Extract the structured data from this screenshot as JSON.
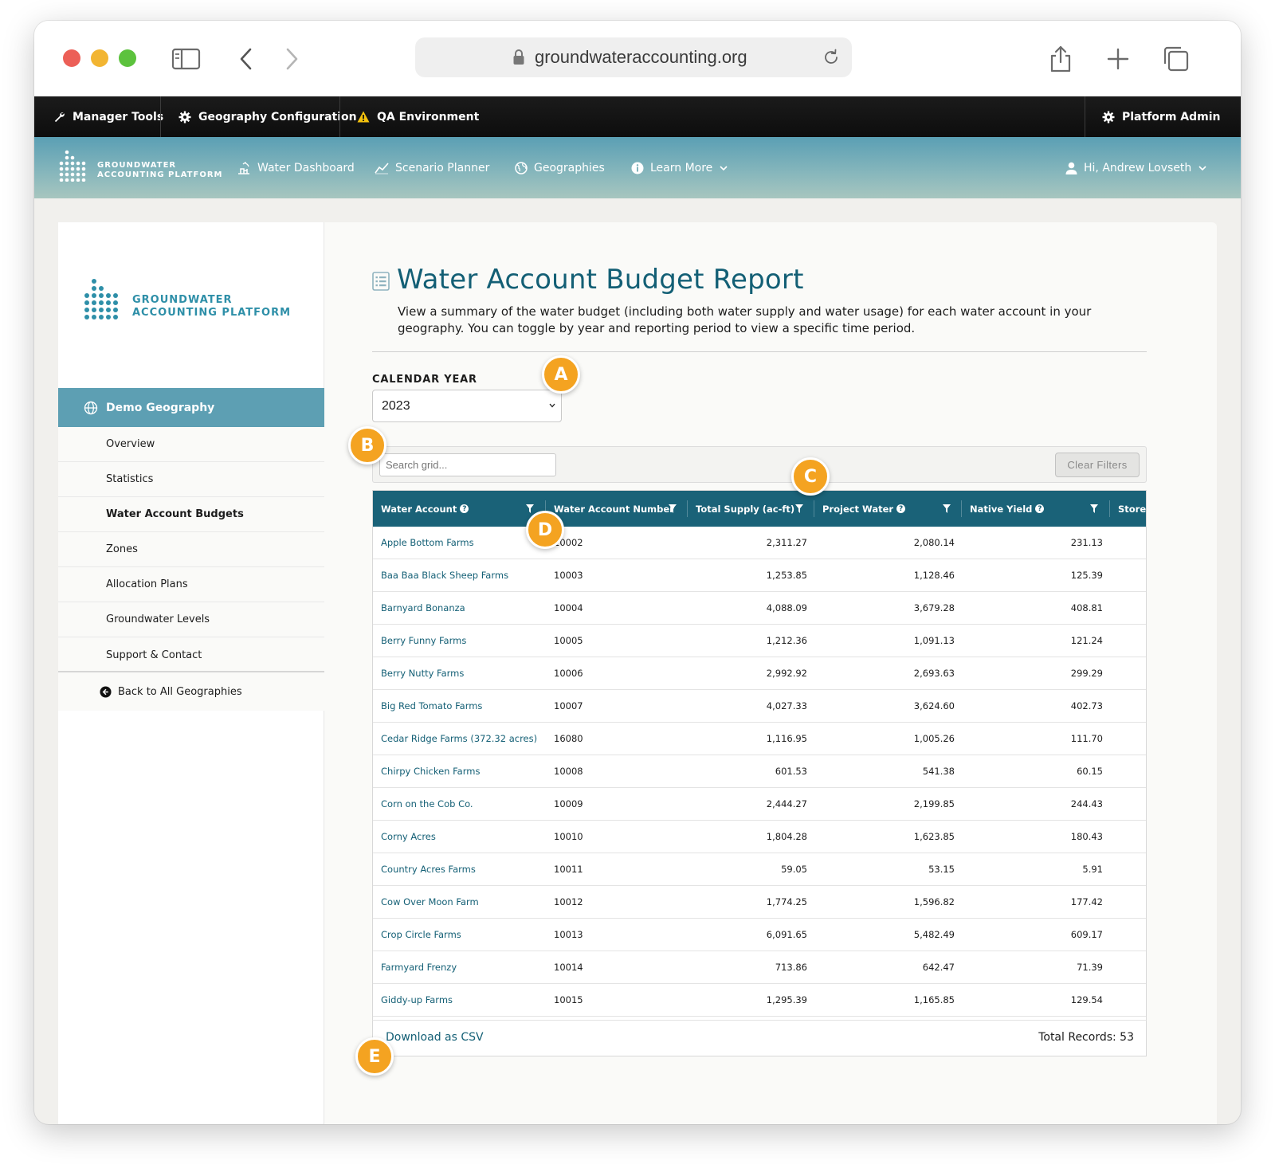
{
  "browser": {
    "url": "groundwateraccounting.org",
    "traffic_lights": {
      "close": "#ec5f57",
      "minimize": "#f2b532",
      "zoom": "#5cc23d"
    }
  },
  "admin_bar": {
    "manager_tools": "Manager Tools",
    "geography_config": "Geography Configuration",
    "qa_environment": "QA Environment",
    "platform_admin": "Platform Admin"
  },
  "main_nav": {
    "logo_line1": "GROUNDWATER",
    "logo_line2": "ACCOUNTING PLATFORM",
    "water_dashboard": "Water Dashboard",
    "scenario_planner": "Scenario Planner",
    "geographies": "Geographies",
    "learn_more": "Learn More",
    "user": "Hi, Andrew Lovseth"
  },
  "sidebar": {
    "logo_line1": "GROUNDWATER",
    "logo_line2": "ACCOUNTING PLATFORM",
    "geography": "Demo Geography",
    "items": [
      {
        "label": "Overview",
        "active": false
      },
      {
        "label": "Statistics",
        "active": false
      },
      {
        "label": "Water Account Budgets",
        "active": true
      },
      {
        "label": "Zones",
        "active": false
      },
      {
        "label": "Allocation Plans",
        "active": false
      },
      {
        "label": "Groundwater Levels",
        "active": false
      },
      {
        "label": "Support & Contact",
        "active": false
      }
    ],
    "back": "Back to All Geographies"
  },
  "page": {
    "title": "Water Account Budget Report",
    "description": "View a summary of the water budget (including both water supply and water usage) for each water account in your geography. You can toggle by year and reporting period to view a specific time period.",
    "year_label": "CALENDAR YEAR",
    "year_value": "2023"
  },
  "grid": {
    "search_placeholder": "Search grid...",
    "clear_filters": "Clear Filters",
    "columns": [
      "Water Account",
      "Water Account Number",
      "Total Supply (ac-ft)",
      "Project Water",
      "Native Yield",
      "Stored"
    ],
    "rows": [
      [
        "Apple Bottom Farms",
        "10002",
        "2,311.27",
        "2,080.14",
        "231.13"
      ],
      [
        "Baa Baa Black Sheep Farms",
        "10003",
        "1,253.85",
        "1,128.46",
        "125.39"
      ],
      [
        "Barnyard Bonanza",
        "10004",
        "4,088.09",
        "3,679.28",
        "408.81"
      ],
      [
        "Berry Funny Farms",
        "10005",
        "1,212.36",
        "1,091.13",
        "121.24"
      ],
      [
        "Berry Nutty Farms",
        "10006",
        "2,992.92",
        "2,693.63",
        "299.29"
      ],
      [
        "Big Red Tomato Farms",
        "10007",
        "4,027.33",
        "3,624.60",
        "402.73"
      ],
      [
        "Cedar Ridge Farms (372.32 acres)",
        "16080",
        "1,116.95",
        "1,005.26",
        "111.70"
      ],
      [
        "Chirpy Chicken Farms",
        "10008",
        "601.53",
        "541.38",
        "60.15"
      ],
      [
        "Corn on the Cob Co.",
        "10009",
        "2,444.27",
        "2,199.85",
        "244.43"
      ],
      [
        "Corny Acres",
        "10010",
        "1,804.28",
        "1,623.85",
        "180.43"
      ],
      [
        "Country Acres Farms",
        "10011",
        "59.05",
        "53.15",
        "5.91"
      ],
      [
        "Cow Over Moon Farm",
        "10012",
        "1,774.25",
        "1,596.82",
        "177.42"
      ],
      [
        "Crop Circle Farms",
        "10013",
        "6,091.65",
        "5,482.49",
        "609.17"
      ],
      [
        "Farmyard Frenzy",
        "10014",
        "713.86",
        "642.47",
        "71.39"
      ],
      [
        "Giddy-up Farms",
        "10015",
        "1,295.39",
        "1,165.85",
        "129.54"
      ]
    ],
    "download_csv": "Download as CSV",
    "total_records": "Total Records: 53"
  },
  "badges": {
    "a": "A",
    "b": "B",
    "c": "C",
    "d": "D",
    "e": "E"
  },
  "colors": {
    "accent": "#135f75",
    "header": "#1a6278",
    "badge": "#f4a321"
  }
}
